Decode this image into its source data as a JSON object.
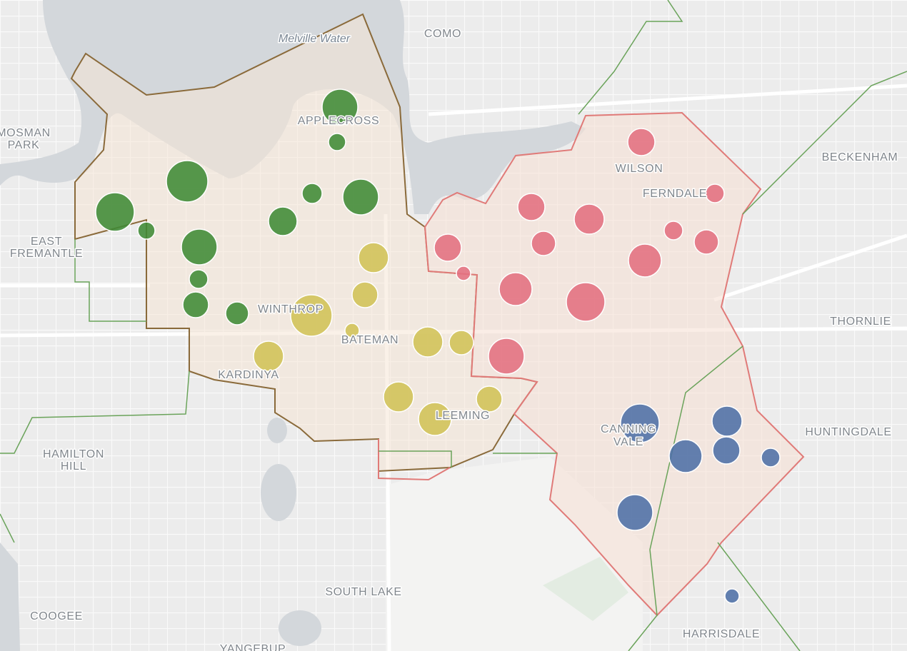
{
  "map": {
    "labels": [
      "Melville Water",
      "COMO",
      "APPLECROSS",
      [
        "MOSMAN",
        "PARK"
      ],
      "BECKENHAM",
      "WILSON",
      "FERNDALE",
      [
        "EAST",
        "FREMANTLE"
      ],
      "WINTHROP",
      "BATEMAN",
      "THORNLIE",
      "KARDINYA",
      "HUNTINGDALE",
      [
        "CANNING",
        "VALE"
      ],
      "LEEMING",
      [
        "HAMILTON",
        "HILL"
      ],
      "SOUTH LAKE",
      "COOGEE",
      "HARRISDALE",
      "YANGEBUP"
    ]
  }
}
